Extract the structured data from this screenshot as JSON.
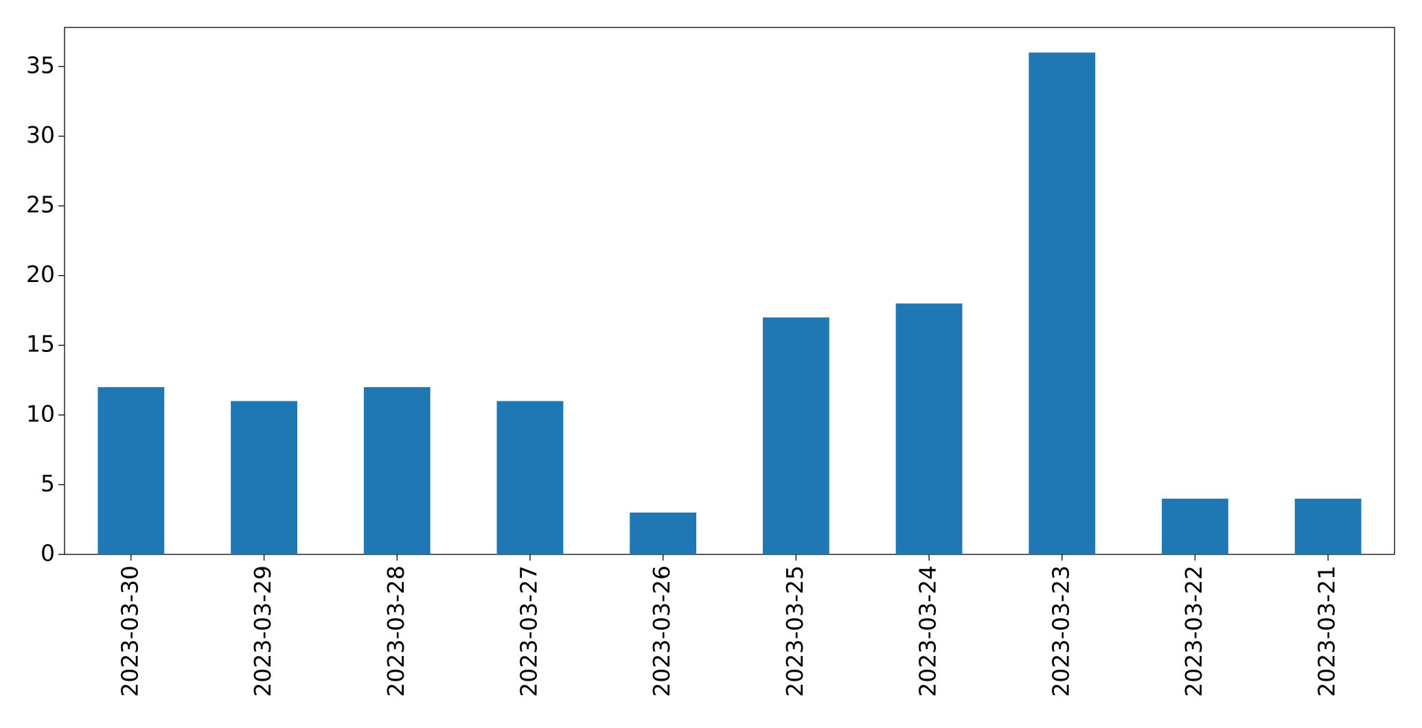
{
  "chart_data": {
    "type": "bar",
    "categories": [
      "2023-03-30",
      "2023-03-29",
      "2023-03-28",
      "2023-03-27",
      "2023-03-26",
      "2023-03-25",
      "2023-03-24",
      "2023-03-23",
      "2023-03-22",
      "2023-03-21"
    ],
    "values": [
      12,
      11,
      12,
      11,
      3,
      17,
      18,
      36,
      4,
      4
    ],
    "color": "#1f77b4",
    "ylim": [
      0,
      37.8
    ],
    "yticks": [
      0,
      5,
      10,
      15,
      20,
      25,
      30,
      35
    ],
    "grid": false
  }
}
